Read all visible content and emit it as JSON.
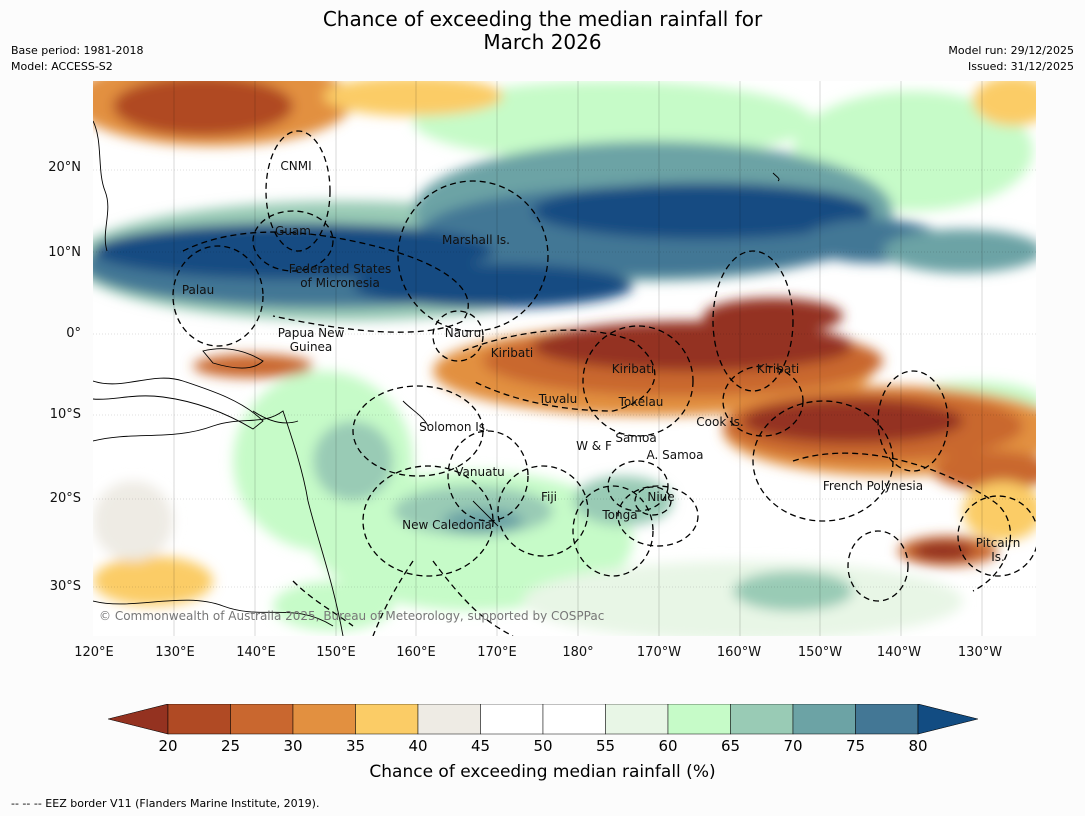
{
  "title": {
    "line1": "Chance of exceeding the median rainfall for",
    "line2": "March 2026"
  },
  "meta": {
    "base_period": "Base period: 1981-2018",
    "model": "Model: ACCESS-S2",
    "model_run": "Model run: 29/12/2025",
    "issued": "Issued: 31/12/2025"
  },
  "map": {
    "copyright": "© Commonwealth of Australia 2025, Bureau of Meteorology, supported by COSPPac",
    "lat_ticks": [
      "20°N",
      "10°N",
      "0°",
      "10°S",
      "20°S",
      "30°S"
    ],
    "lon_ticks": [
      "120°E",
      "130°E",
      "140°E",
      "150°E",
      "160°E",
      "170°E",
      "180°",
      "170°W",
      "160°W",
      "150°W",
      "140°W",
      "130°W"
    ],
    "regions": {
      "cnmi": "CNMI",
      "guam": "Guam",
      "marshall": "Marshall Is.",
      "fsm1": "Federated States",
      "fsm2": "of Micronesia",
      "palau": "Palau",
      "png1": "Papua New",
      "png2": "Guinea",
      "nauru": "Nauru",
      "kiribati1": "Kiribati",
      "kiribati2": "Kiribati",
      "kiribati3": "Kiribati",
      "tuvalu": "Tuvalu",
      "tokelau": "Tokelau",
      "solomon": "Solomon Is.",
      "cook": "Cook Is.",
      "samoa": "Samoa",
      "wf": "W & F",
      "asamoa": "A. Samoa",
      "vanuatu": "Vanuatu",
      "fiji": "Fiji",
      "niue": "Niue",
      "tonga": "Tonga",
      "newcal": "New Caledonia",
      "frpoly": "French Polynesia",
      "pitcairn1": "Pitcairn",
      "pitcairn2": "Is."
    }
  },
  "colorbar": {
    "title": "Chance of exceeding median rainfall (%)",
    "ticks": [
      "20",
      "25",
      "30",
      "35",
      "40",
      "45",
      "50",
      "55",
      "60",
      "65",
      "70",
      "75",
      "80"
    ],
    "colors": [
      "#943220",
      "#b04a24",
      "#c9672f",
      "#e29040",
      "#fbcc66",
      "#eeebe4",
      "#ffffff",
      "#ffffff",
      "#e8f6e6",
      "#c6fbc8",
      "#99cbb5",
      "#6ca3a5",
      "#437795",
      "#124c82"
    ]
  },
  "legend": "-- -- -- EEZ border V11 (Flanders Marine Institute, 2019)."
}
